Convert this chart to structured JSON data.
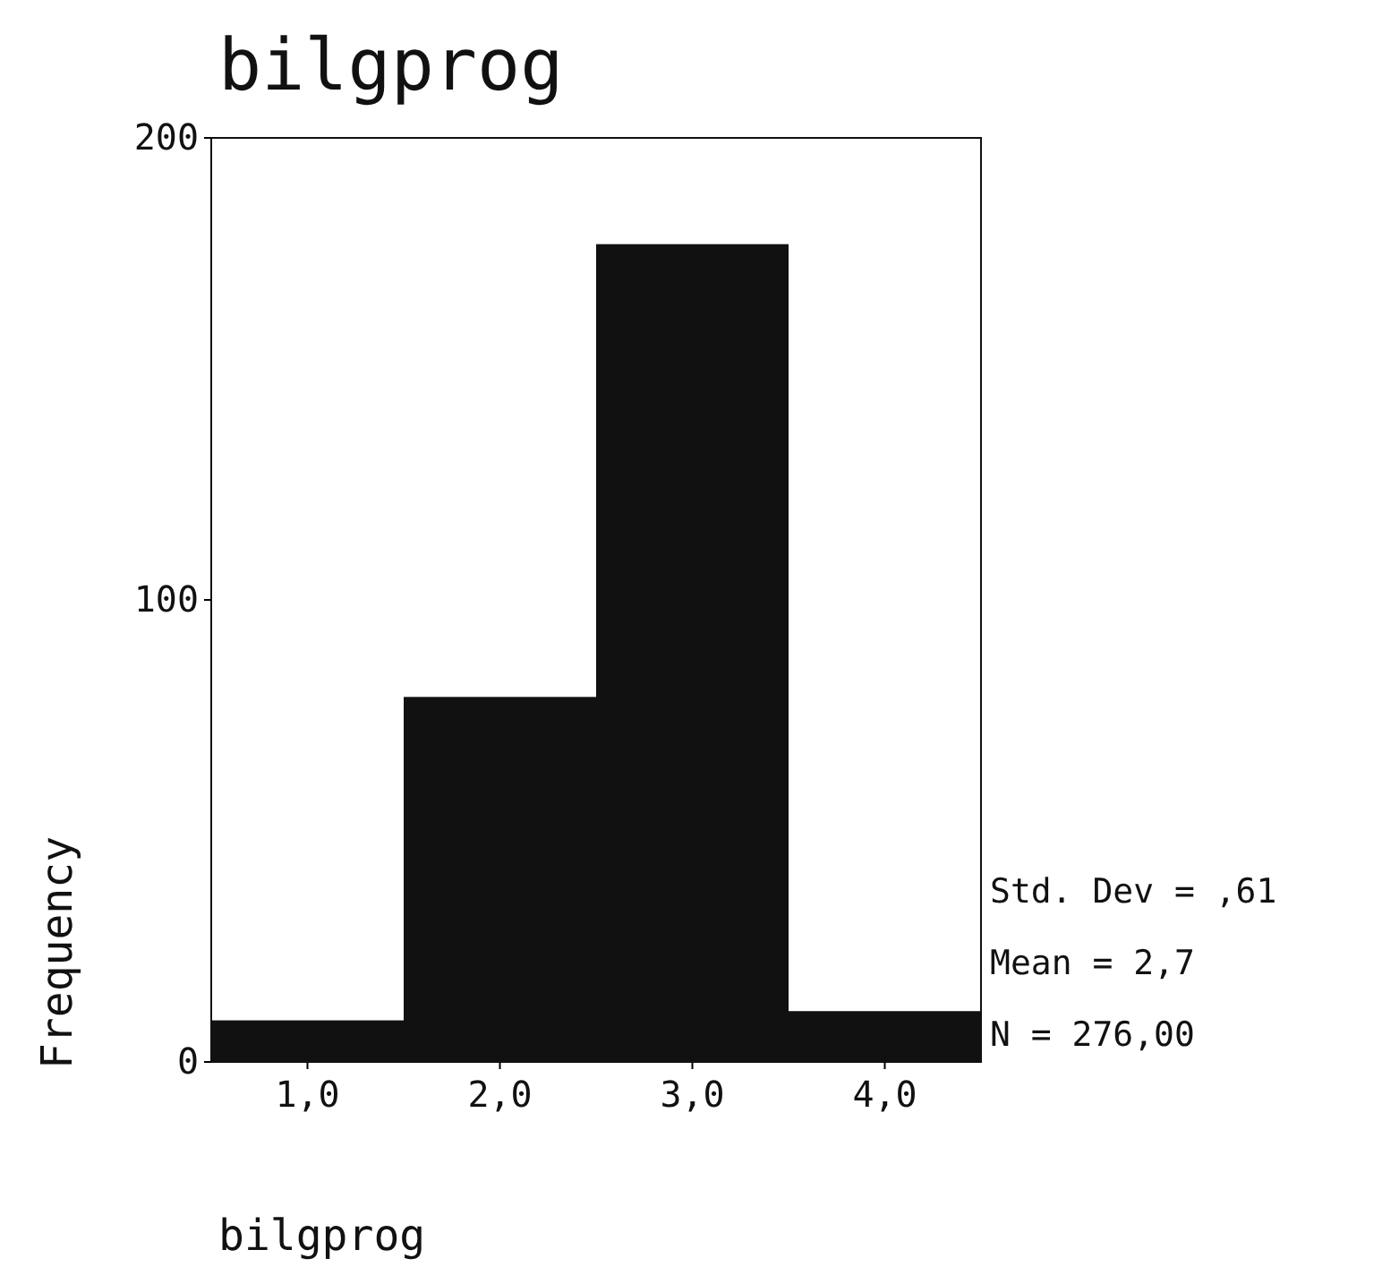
{
  "chart_data": {
    "type": "histogram",
    "title": "bilgprog",
    "xlabel": "bilgprog",
    "ylabel": "Frequency",
    "bins": [
      0.5,
      1.5,
      2.5,
      3.5,
      4.5
    ],
    "values": [
      9,
      79,
      177,
      11
    ],
    "color": "#111111",
    "xlim": [
      0.5,
      4.5
    ],
    "xticks": [
      {
        "value": 1,
        "label": "1,0"
      },
      {
        "value": 2,
        "label": "2,0"
      },
      {
        "value": 3,
        "label": "3,0"
      },
      {
        "value": 4,
        "label": "4,0"
      }
    ],
    "ylim": [
      0,
      200
    ],
    "yticks": [
      0,
      100,
      200
    ],
    "grid": false,
    "annotations": [
      "Std. Dev = ,61",
      "Mean = 2,7",
      "N = 276,00"
    ]
  }
}
